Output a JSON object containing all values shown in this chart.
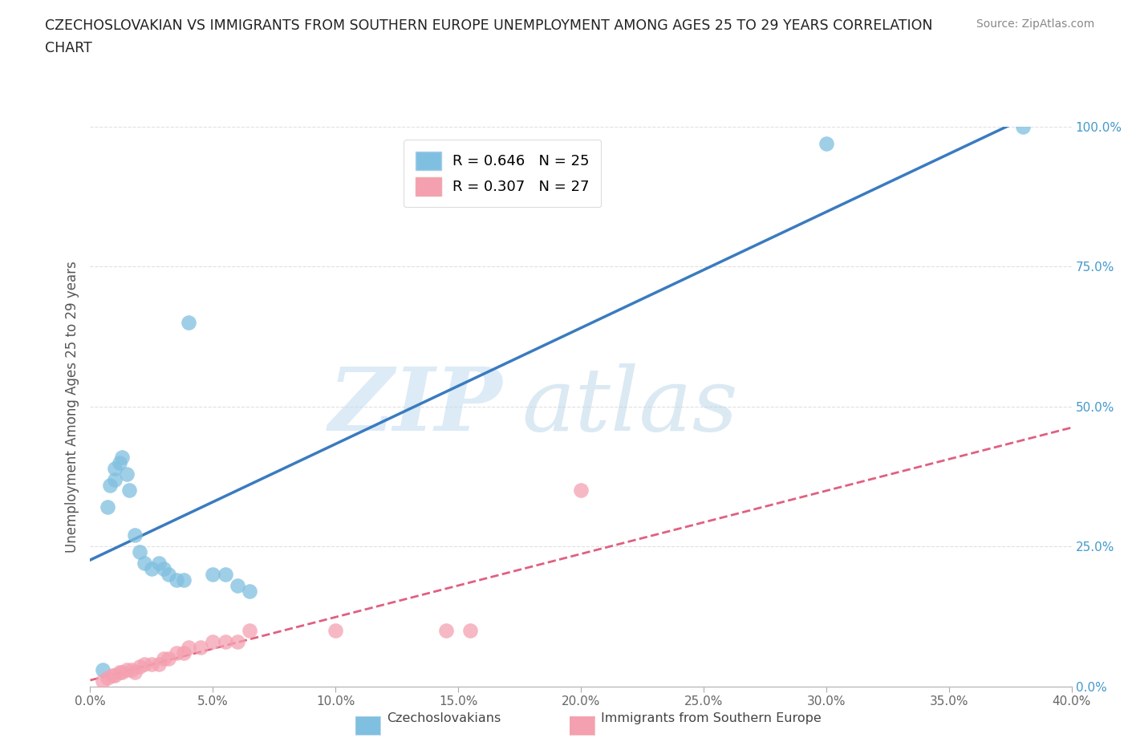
{
  "title_line1": "CZECHOSLOVAKIAN VS IMMIGRANTS FROM SOUTHERN EUROPE UNEMPLOYMENT AMONG AGES 25 TO 29 YEARS CORRELATION",
  "title_line2": "CHART",
  "source_text": "Source: ZipAtlas.com",
  "ylabel": "Unemployment Among Ages 25 to 29 years",
  "x_tick_labels": [
    "0.0%",
    "5.0%",
    "10.0%",
    "15.0%",
    "20.0%",
    "25.0%",
    "30.0%",
    "35.0%",
    "40.0%"
  ],
  "x_tick_values": [
    0.0,
    0.05,
    0.1,
    0.15,
    0.2,
    0.25,
    0.3,
    0.35,
    0.4
  ],
  "y_tick_labels": [
    "0.0%",
    "25.0%",
    "50.0%",
    "75.0%",
    "100.0%"
  ],
  "y_tick_values": [
    0.0,
    0.25,
    0.5,
    0.75,
    1.0
  ],
  "xlim": [
    0.0,
    0.4
  ],
  "ylim": [
    0.0,
    1.0
  ],
  "blue_color": "#7fbfdf",
  "pink_color": "#f4a0b0",
  "blue_line_color": "#3a7bbf",
  "pink_line_color": "#e06080",
  "R_blue": "0.646",
  "N_blue": "25",
  "R_pink": "0.307",
  "N_pink": "27",
  "legend_label_blue": "Czechoslovakians",
  "legend_label_pink": "Immigrants from Southern Europe",
  "watermark_zip": "ZIP",
  "watermark_atlas": "atlas",
  "blue_scatter_x": [
    0.005,
    0.007,
    0.008,
    0.01,
    0.01,
    0.012,
    0.013,
    0.015,
    0.016,
    0.018,
    0.02,
    0.022,
    0.025,
    0.028,
    0.03,
    0.032,
    0.035,
    0.038,
    0.04,
    0.05,
    0.055,
    0.06,
    0.065,
    0.3,
    0.38
  ],
  "blue_scatter_y": [
    0.03,
    0.32,
    0.36,
    0.37,
    0.39,
    0.4,
    0.41,
    0.38,
    0.35,
    0.27,
    0.24,
    0.22,
    0.21,
    0.22,
    0.21,
    0.2,
    0.19,
    0.19,
    0.65,
    0.2,
    0.2,
    0.18,
    0.17,
    0.97,
    1.0
  ],
  "pink_scatter_x": [
    0.005,
    0.007,
    0.009,
    0.01,
    0.012,
    0.013,
    0.015,
    0.017,
    0.018,
    0.02,
    0.022,
    0.025,
    0.028,
    0.03,
    0.032,
    0.035,
    0.038,
    0.04,
    0.045,
    0.05,
    0.055,
    0.06,
    0.065,
    0.1,
    0.145,
    0.155,
    0.2
  ],
  "pink_scatter_y": [
    0.01,
    0.015,
    0.02,
    0.02,
    0.025,
    0.025,
    0.03,
    0.03,
    0.025,
    0.035,
    0.04,
    0.04,
    0.04,
    0.05,
    0.05,
    0.06,
    0.06,
    0.07,
    0.07,
    0.08,
    0.08,
    0.08,
    0.1,
    0.1,
    0.1,
    0.1,
    0.35
  ],
  "background_color": "#ffffff",
  "grid_color": "#e0e0e0"
}
